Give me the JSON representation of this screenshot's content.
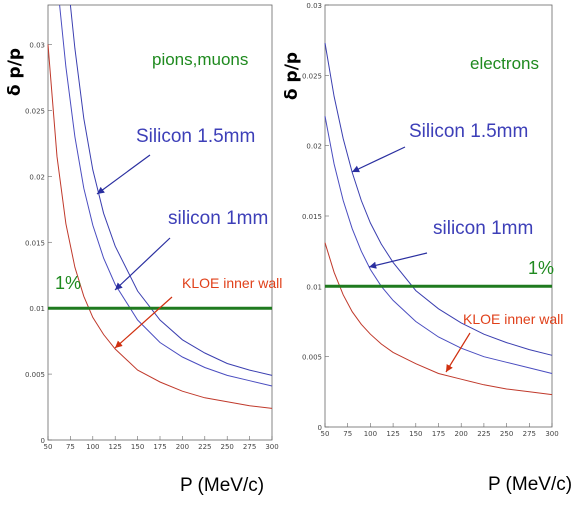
{
  "chart_data": [
    {
      "type": "line",
      "title": "pions,muons",
      "xlabel": "P (MeV/c)",
      "ylabel": "δ p/p",
      "xlim": [
        50,
        300
      ],
      "ylim": [
        0,
        0.033
      ],
      "xticks": [
        "50",
        "75",
        "100",
        "125",
        "150",
        "175",
        "200",
        "225",
        "250",
        "275",
        "300"
      ],
      "yticks": [
        "0",
        "0.005",
        "0.01",
        "0.015",
        "0.02",
        "0.025",
        "0.03"
      ],
      "series": [
        {
          "name": "Silicon 1.5mm",
          "color": "#3b3fb0",
          "x": [
            75,
            80,
            90,
            100,
            112,
            125,
            150,
            175,
            200,
            225,
            250,
            275,
            300
          ],
          "y": [
            0.033,
            0.0297,
            0.0244,
            0.0205,
            0.0172,
            0.0147,
            0.0113,
            0.0091,
            0.0076,
            0.0066,
            0.0058,
            0.0053,
            0.0049
          ]
        },
        {
          "name": "silicon 1mm",
          "color": "#4a4dc0",
          "x": [
            63,
            70,
            80,
            90,
            100,
            112,
            125,
            150,
            175,
            200,
            225,
            250,
            275,
            300
          ],
          "y": [
            0.033,
            0.0283,
            0.023,
            0.0191,
            0.0163,
            0.0138,
            0.0118,
            0.0091,
            0.0074,
            0.0063,
            0.0055,
            0.0049,
            0.0045,
            0.0041
          ]
        },
        {
          "name": "KLOE inner wall",
          "color": "#c0392b",
          "x": [
            50,
            60,
            70,
            80,
            90,
            100,
            112,
            125,
            150,
            175,
            200,
            225,
            250,
            275,
            300
          ],
          "y": [
            0.03,
            0.0215,
            0.0164,
            0.0131,
            0.0109,
            0.0093,
            0.008,
            0.0069,
            0.0053,
            0.0044,
            0.0037,
            0.0032,
            0.0029,
            0.0026,
            0.0024
          ]
        },
        {
          "name": "1%",
          "color": "#1f7a1f",
          "x": [
            50,
            300
          ],
          "y": [
            0.01,
            0.01
          ]
        }
      ],
      "annotations": [
        {
          "text": "pions,muons",
          "color": "#1f8a1f"
        },
        {
          "text": "Silicon 1.5mm",
          "color": "#3d3fb8",
          "arrow_x": 100,
          "arrow_y": 0.0205
        },
        {
          "text": "silicon 1mm",
          "color": "#3d3fb8",
          "arrow_x": 112,
          "arrow_y": 0.0128
        },
        {
          "text": "KLOE inner wall",
          "color": "#e0401a",
          "arrow_x": 105,
          "arrow_y": 0.0075
        },
        {
          "text": "1%",
          "color": "#1f8a1f"
        }
      ]
    },
    {
      "type": "line",
      "title": "electrons",
      "xlabel": "P (MeV/c)",
      "ylabel": "δ p/p",
      "xlim": [
        50,
        300
      ],
      "ylim": [
        0,
        0.03
      ],
      "xticks": [
        "50",
        "75",
        "100",
        "125",
        "150",
        "175",
        "200",
        "225",
        "250",
        "275",
        "300"
      ],
      "yticks": [
        "0",
        "0.005",
        "0.01",
        "0.015",
        "0.02",
        "0.025",
        "0.03"
      ],
      "series": [
        {
          "name": "Silicon 1.5mm",
          "color": "#3b3fb0",
          "x": [
            50,
            60,
            70,
            80,
            90,
            100,
            112,
            125,
            150,
            175,
            200,
            225,
            250,
            275,
            300
          ],
          "y": [
            0.0273,
            0.0235,
            0.0205,
            0.0181,
            0.0161,
            0.0145,
            0.013,
            0.0117,
            0.0097,
            0.0084,
            0.0074,
            0.0066,
            0.006,
            0.0055,
            0.0051
          ]
        },
        {
          "name": "silicon 1mm",
          "color": "#4a4dc0",
          "x": [
            50,
            60,
            70,
            80,
            90,
            100,
            112,
            125,
            150,
            175,
            200,
            225,
            250,
            275,
            300
          ],
          "y": [
            0.0221,
            0.0187,
            0.0161,
            0.0141,
            0.0125,
            0.0112,
            0.01,
            0.009,
            0.0075,
            0.0064,
            0.0056,
            0.005,
            0.0046,
            0.0042,
            0.0038
          ]
        },
        {
          "name": "KLOE inner wall",
          "color": "#c0392b",
          "x": [
            50,
            60,
            70,
            80,
            90,
            100,
            112,
            125,
            150,
            175,
            200,
            225,
            250,
            275,
            300
          ],
          "y": [
            0.0131,
            0.011,
            0.0094,
            0.0082,
            0.0073,
            0.0066,
            0.0059,
            0.0053,
            0.0045,
            0.0038,
            0.0034,
            0.003,
            0.0027,
            0.0025,
            0.0023
          ]
        },
        {
          "name": "1%",
          "color": "#1f7a1f",
          "x": [
            50,
            300
          ],
          "y": [
            0.01,
            0.01
          ]
        }
      ],
      "annotations": [
        {
          "text": "electrons",
          "color": "#1f8a1f"
        },
        {
          "text": "Silicon 1.5mm",
          "color": "#3d3fb8",
          "arrow_x": 77,
          "arrow_y": 0.0195
        },
        {
          "text": "silicon 1mm",
          "color": "#3d3fb8",
          "arrow_x": 95,
          "arrow_y": 0.0118
        },
        {
          "text": "KLOE inner wall",
          "color": "#e0401a",
          "arrow_x": 170,
          "arrow_y": 0.0036
        },
        {
          "text": "1%",
          "color": "#1f8a1f"
        }
      ]
    }
  ]
}
